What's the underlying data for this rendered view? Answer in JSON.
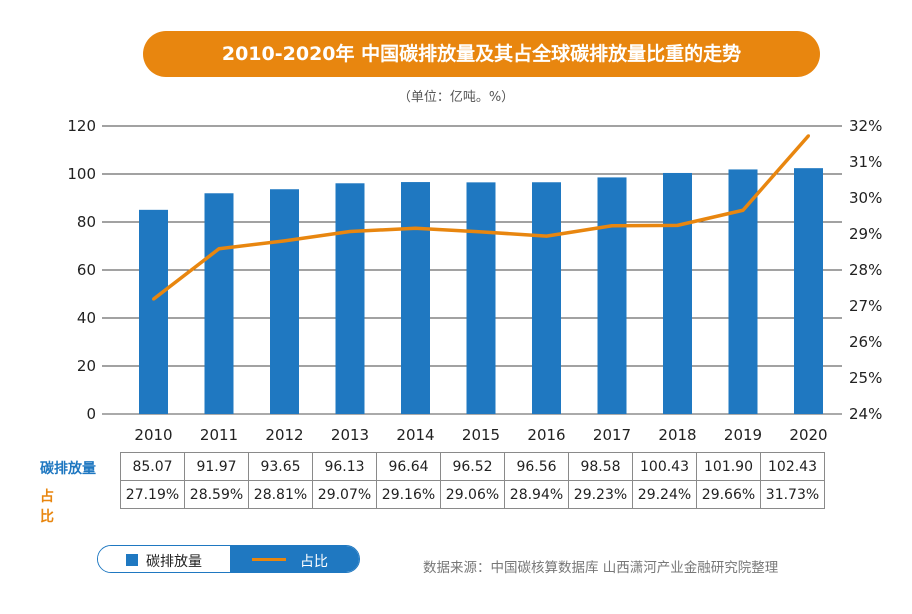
{
  "chart_data": {
    "type": "bar+line",
    "title": "2010-2020年  中国碳排放量及其占全球碳排放量比重的走势",
    "subtitle": "（单位：亿吨。%）",
    "categories": [
      "2010",
      "2011",
      "2012",
      "2013",
      "2014",
      "2015",
      "2016",
      "2017",
      "2018",
      "2019",
      "2020"
    ],
    "series": [
      {
        "name": "碳排放量",
        "type": "bar",
        "axis": "left",
        "color": "#1f78c1",
        "values": [
          85.07,
          91.97,
          93.65,
          96.13,
          96.64,
          96.52,
          96.56,
          98.58,
          100.43,
          101.9,
          102.43
        ]
      },
      {
        "name": "占比",
        "type": "line",
        "axis": "right",
        "color": "#e8860f",
        "values": [
          27.19,
          28.59,
          28.81,
          29.07,
          29.16,
          29.06,
          28.94,
          29.23,
          29.24,
          29.66,
          31.73
        ]
      }
    ],
    "ylim_left": [
      0,
      120
    ],
    "yticks_left": [
      0,
      20,
      40,
      60,
      80,
      100,
      120
    ],
    "ylim_right": [
      24,
      32
    ],
    "yticks_right": [
      "24%",
      "25%",
      "26%",
      "27%",
      "28%",
      "29%",
      "30%",
      "31%",
      "32%"
    ],
    "table": {
      "row_labels": [
        "碳排放量",
        "占　比"
      ],
      "rows": [
        [
          "85.07",
          "91.97",
          "93.65",
          "96.13",
          "96.64",
          "96.52",
          "96.56",
          "98.58",
          "100.43",
          "101.90",
          "102.43"
        ],
        [
          "27.19%",
          "28.59%",
          "28.81%",
          "29.07%",
          "29.16%",
          "29.06%",
          "28.94%",
          "29.23%",
          "29.24%",
          "29.66%",
          "31.73%"
        ]
      ]
    },
    "legend": {
      "bar_label": "碳排放量",
      "line_label": "占比"
    },
    "source": "数据来源：中国碳核算数据库 山西潇河产业金融研究院整理"
  }
}
